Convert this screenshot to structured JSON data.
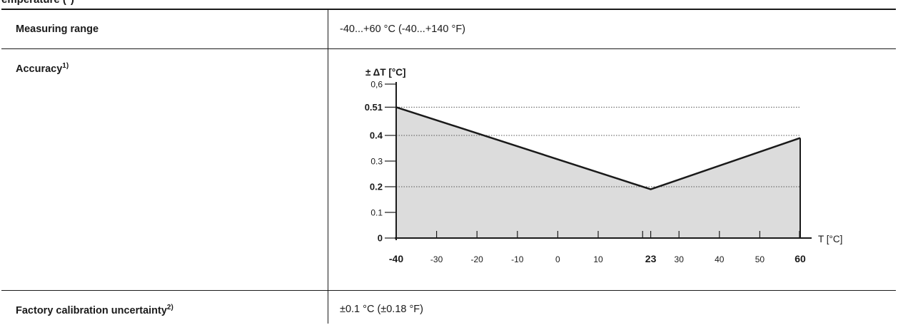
{
  "section": {
    "heading_fragment": "emperature (°)"
  },
  "rows": [
    {
      "label": "Measuring range",
      "value": "-40...+60 °C (-40...+140 °F)"
    },
    {
      "label": "Accuracy",
      "label_sup": "1)"
    },
    {
      "label": "Factory calibration uncertainty",
      "label_sup": "2)",
      "value": "±0.1 °C (±0.18 °F)"
    }
  ],
  "chart_data": {
    "type": "area",
    "ylabel": "± ΔT [°C]",
    "xlabel": "T [°C]",
    "ylim": [
      0,
      0.6
    ],
    "xlim": [
      -40,
      60
    ],
    "x": [
      -40,
      23,
      60
    ],
    "y": [
      0.51,
      0.19,
      0.39
    ],
    "grid": "dotted reference lines at y = 0.51, 0.4, 0.2",
    "y_ticks": [
      {
        "value": 0,
        "label": "0",
        "bold": true
      },
      {
        "value": 0.1,
        "label": "0.1",
        "bold": false
      },
      {
        "value": 0.2,
        "label": "0.2",
        "bold": true
      },
      {
        "value": 0.3,
        "label": "0.3",
        "bold": false
      },
      {
        "value": 0.4,
        "label": "0.4",
        "bold": true
      },
      {
        "value": 0.51,
        "label": "0.51",
        "bold": true
      },
      {
        "value": 0.6,
        "label": "0,6",
        "bold": false
      }
    ],
    "x_ticks": [
      {
        "value": -40,
        "label": "-40",
        "bold": true
      },
      {
        "value": -30,
        "label": "-30",
        "bold": false
      },
      {
        "value": -20,
        "label": "-20",
        "bold": false
      },
      {
        "value": -10,
        "label": "-10",
        "bold": false
      },
      {
        "value": 0,
        "label": "0",
        "bold": false
      },
      {
        "value": 10,
        "label": "10",
        "bold": false
      },
      {
        "value": 23,
        "label": "23",
        "bold": true
      },
      {
        "value": 30,
        "label": "30",
        "bold": false
      },
      {
        "value": 40,
        "label": "40",
        "bold": false
      },
      {
        "value": 50,
        "label": "50",
        "bold": false
      },
      {
        "value": 60,
        "label": "60",
        "bold": true
      }
    ],
    "colors": {
      "fill": "#dcdcdc",
      "line": "#1a1a1a",
      "grid": "#555555"
    }
  }
}
